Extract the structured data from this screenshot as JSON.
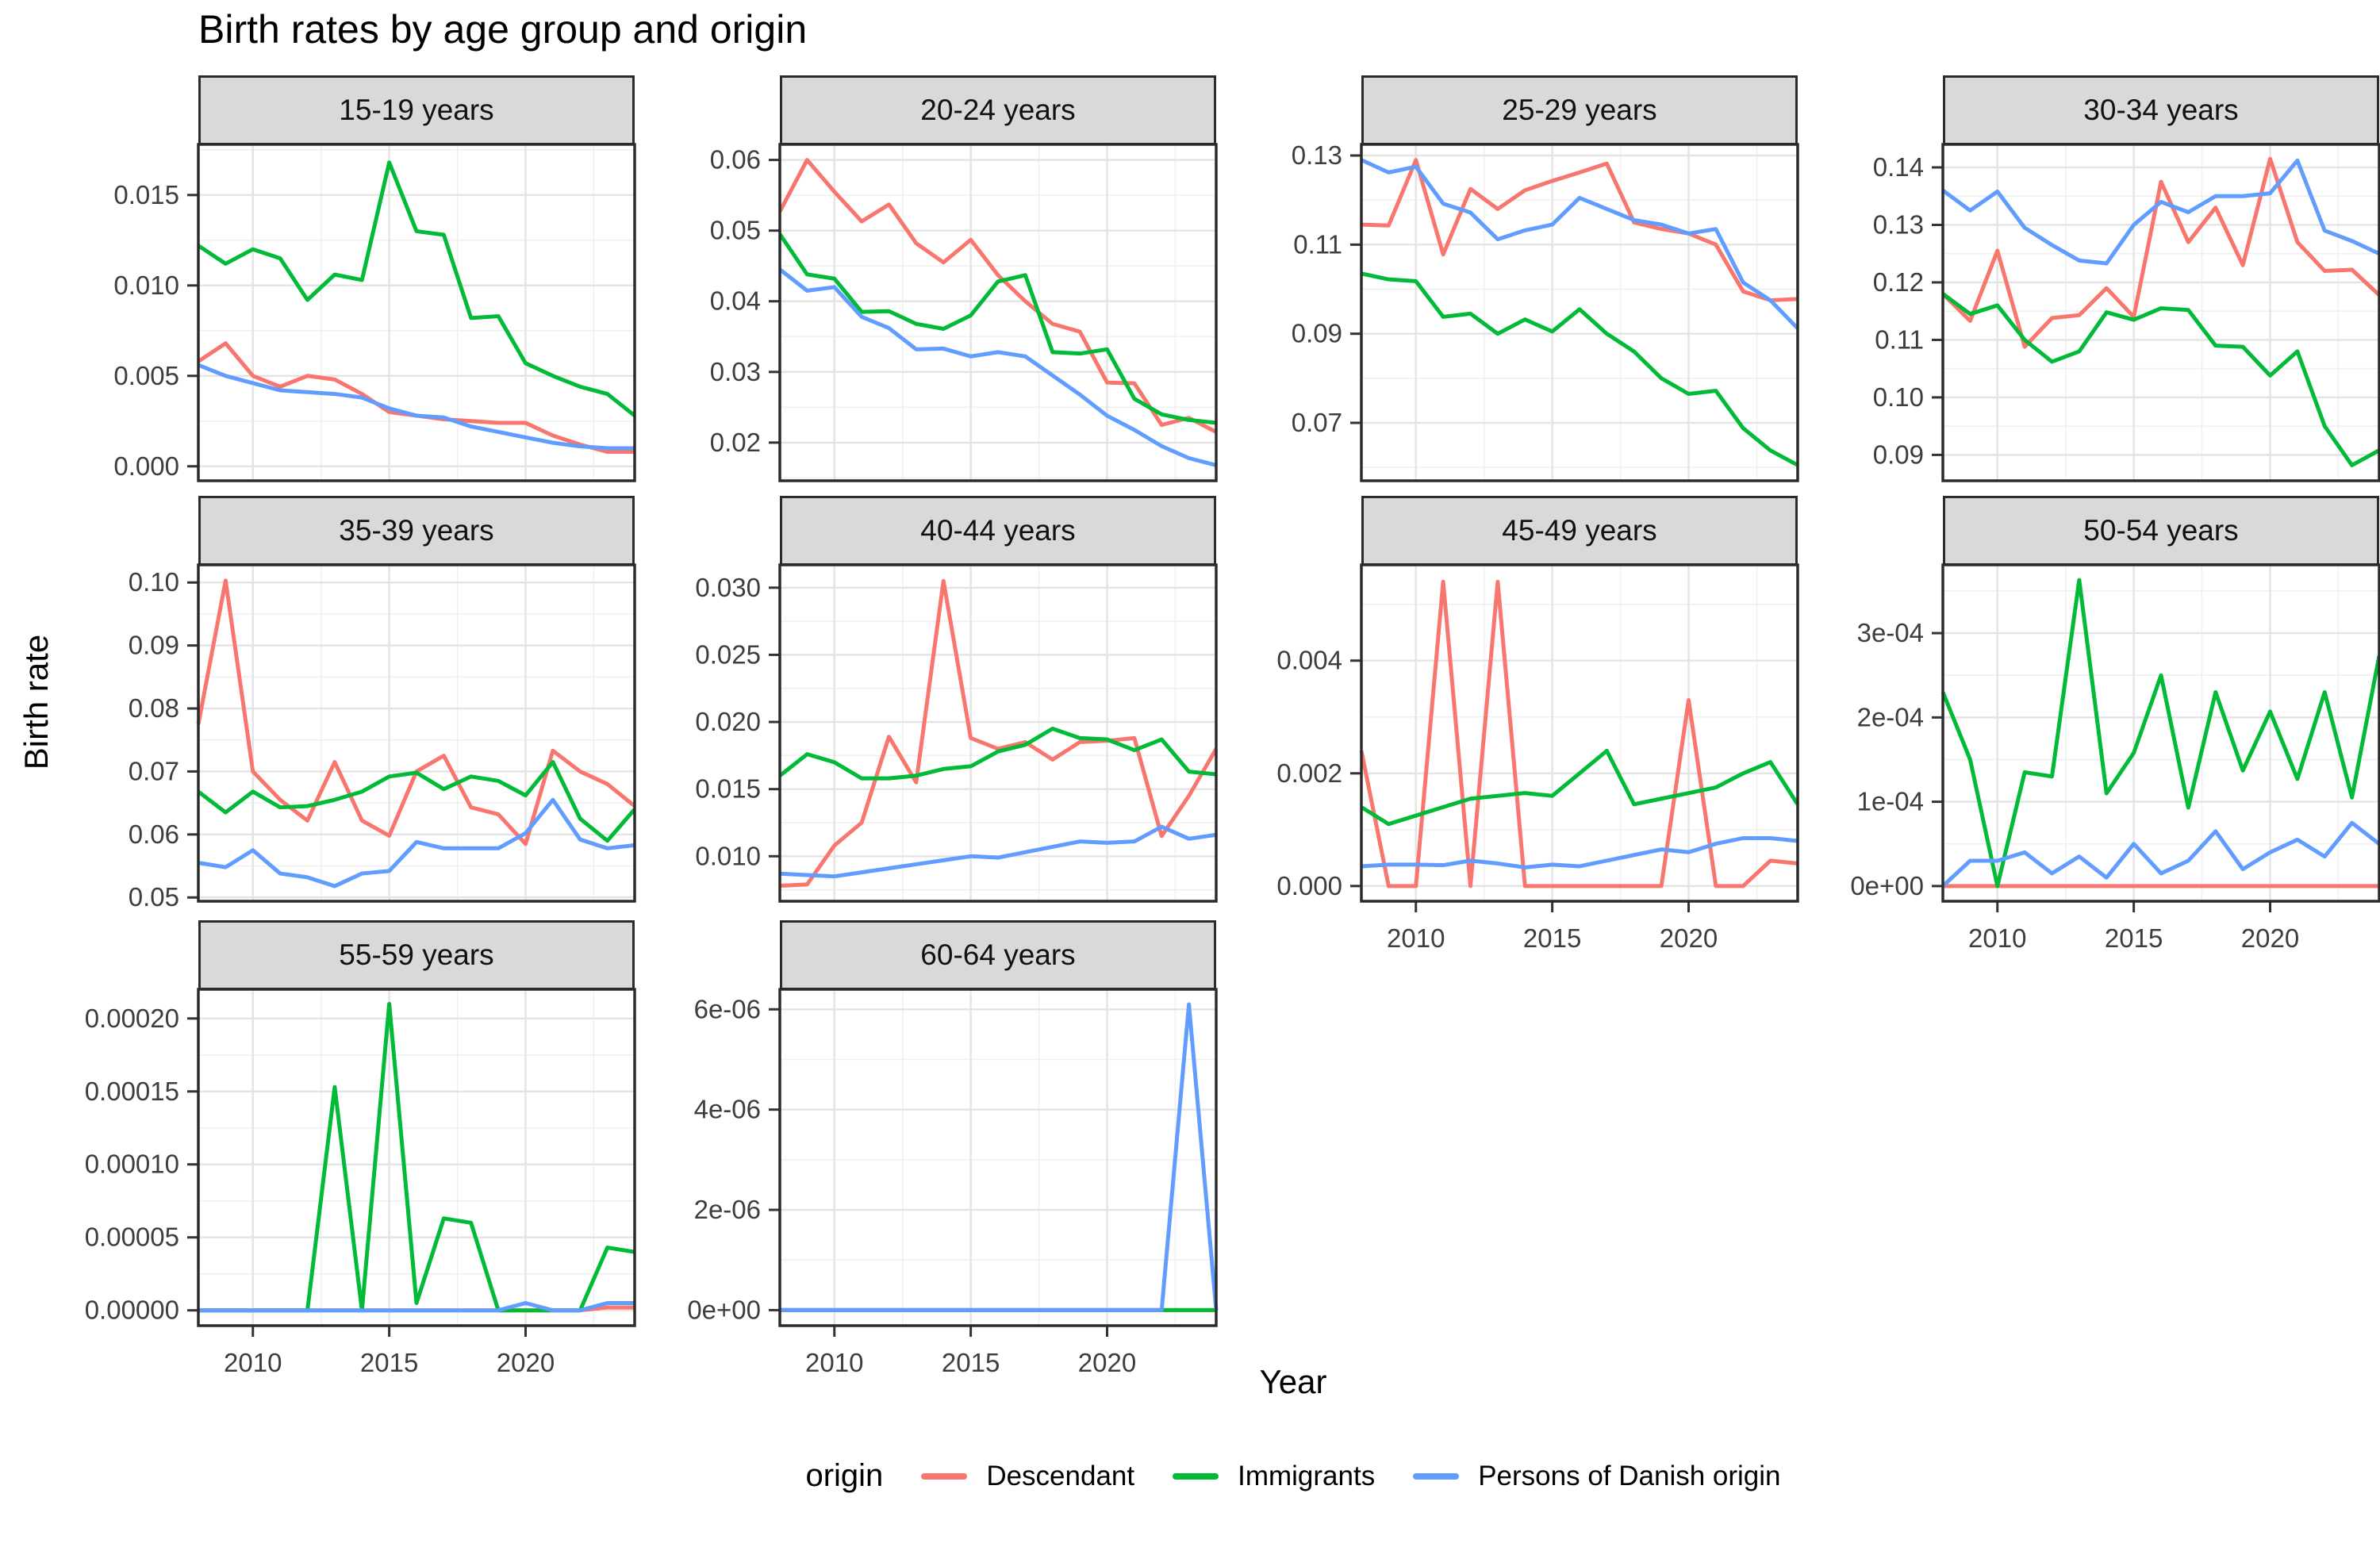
{
  "title": "Birth rates by age group and origin",
  "axes": {
    "x_label": "Year",
    "y_label": "Birth rate"
  },
  "legend": {
    "title": "origin",
    "items": [
      {
        "label": "Descendant",
        "color": "#F8766D"
      },
      {
        "label": "Immigrants",
        "color": "#00BA38"
      },
      {
        "label": "Persons of Danish origin",
        "color": "#619CFF"
      }
    ]
  },
  "chart_data": {
    "type": "line",
    "x_label": "Year",
    "y_label": "Birth rate",
    "x": [
      2008,
      2009,
      2010,
      2011,
      2012,
      2013,
      2014,
      2015,
      2016,
      2017,
      2018,
      2019,
      2020,
      2021,
      2022,
      2023,
      2024
    ],
    "x_range": [
      2008,
      2024
    ],
    "x_ticks": {
      "values": [
        2010,
        2015,
        2020
      ],
      "labels": [
        "2010",
        "2015",
        "2020"
      ]
    },
    "x_minor_ticks": [
      2012.5,
      2017.5,
      2022.5
    ],
    "series_meta": [
      {
        "name": "Descendant",
        "color": "#F8766D"
      },
      {
        "name": "Immigrants",
        "color": "#00BA38"
      },
      {
        "name": "Persons of Danish origin",
        "color": "#619CFF"
      }
    ],
    "panels": [
      {
        "title": "15-19 years",
        "ylim": [
          -0.0008,
          0.0178
        ],
        "y_ticks": {
          "values": [
            0,
            0.005,
            0.01,
            0.015
          ],
          "labels": [
            "0.000",
            "0.005",
            "0.010",
            "0.015"
          ]
        },
        "show_x_labels": false,
        "values": [
          [
            0.0058,
            0.0068,
            0.005,
            0.0044,
            0.005,
            0.0048,
            0.004,
            0.003,
            0.0028,
            0.0026,
            0.0025,
            0.0024,
            0.0024,
            0.0017,
            0.0012,
            0.0008,
            0.0008
          ],
          [
            0.0122,
            0.0112,
            0.012,
            0.0115,
            0.0092,
            0.0106,
            0.0103,
            0.0168,
            0.013,
            0.0128,
            0.0082,
            0.0083,
            0.0057,
            0.005,
            0.0044,
            0.004,
            0.0028
          ],
          [
            0.0056,
            0.005,
            0.0046,
            0.0042,
            0.0041,
            0.004,
            0.0038,
            0.0032,
            0.0028,
            0.0027,
            0.0022,
            0.0019,
            0.0016,
            0.0013,
            0.0011,
            0.001,
            0.001
          ]
        ]
      },
      {
        "title": "20-24 years",
        "ylim": [
          0.0146,
          0.0622
        ],
        "y_ticks": {
          "values": [
            0.02,
            0.03,
            0.04,
            0.05,
            0.06
          ],
          "labels": [
            "0.02",
            "0.03",
            "0.04",
            "0.05",
            "0.06"
          ]
        },
        "show_x_labels": false,
        "values": [
          [
            0.0527,
            0.06,
            0.0555,
            0.0513,
            0.0537,
            0.0482,
            0.0455,
            0.0487,
            0.0437,
            0.04,
            0.0368,
            0.0357,
            0.0285,
            0.0284,
            0.0225,
            0.0235,
            0.0215
          ],
          [
            0.0495,
            0.0438,
            0.0432,
            0.0385,
            0.0386,
            0.0368,
            0.0361,
            0.038,
            0.0428,
            0.0437,
            0.0328,
            0.0326,
            0.0332,
            0.0262,
            0.024,
            0.0232,
            0.0228
          ],
          [
            0.0445,
            0.0415,
            0.042,
            0.0378,
            0.0362,
            0.0332,
            0.0333,
            0.0322,
            0.0328,
            0.0322,
            0.0295,
            0.0268,
            0.0238,
            0.0218,
            0.0195,
            0.0178,
            0.0168
          ]
        ]
      },
      {
        "title": "25-29 years",
        "ylim": [
          0.057,
          0.1325
        ],
        "y_ticks": {
          "values": [
            0.07,
            0.09,
            0.11,
            0.13
          ],
          "labels": [
            "0.07",
            "0.09",
            "0.11",
            "0.13"
          ]
        },
        "show_x_labels": false,
        "values": [
          [
            0.1145,
            0.1143,
            0.129,
            0.1078,
            0.1225,
            0.118,
            0.1222,
            0.1243,
            0.1262,
            0.1282,
            0.115,
            0.1135,
            0.1125,
            0.11,
            0.0995,
            0.0975,
            0.0978
          ],
          [
            0.1035,
            0.1022,
            0.1018,
            0.0938,
            0.0945,
            0.09,
            0.0932,
            0.0905,
            0.0955,
            0.09,
            0.086,
            0.08,
            0.0765,
            0.0772,
            0.0688,
            0.0638,
            0.0605
          ],
          [
            0.129,
            0.1262,
            0.1275,
            0.1192,
            0.1172,
            0.1112,
            0.1132,
            0.1145,
            0.1205,
            0.118,
            0.1155,
            0.1145,
            0.1125,
            0.1135,
            0.1015,
            0.0975,
            0.0912
          ]
        ]
      },
      {
        "title": "30-34 years",
        "ylim": [
          0.0855,
          0.144
        ],
        "y_ticks": {
          "values": [
            0.09,
            0.1,
            0.11,
            0.12,
            0.13,
            0.14
          ],
          "labels": [
            "0.09",
            "0.10",
            "0.11",
            "0.12",
            "0.13",
            "0.14"
          ]
        },
        "show_x_labels": false,
        "values": [
          [
            0.118,
            0.1133,
            0.1255,
            0.1088,
            0.1138,
            0.1143,
            0.119,
            0.114,
            0.1375,
            0.127,
            0.133,
            0.123,
            0.1415,
            0.127,
            0.122,
            0.1222,
            0.1178
          ],
          [
            0.118,
            0.1145,
            0.116,
            0.11,
            0.1062,
            0.108,
            0.1148,
            0.1135,
            0.1155,
            0.1152,
            0.109,
            0.1088,
            0.1038,
            0.108,
            0.095,
            0.0882,
            0.0908
          ],
          [
            0.136,
            0.1325,
            0.1358,
            0.1295,
            0.1265,
            0.1238,
            0.1233,
            0.13,
            0.134,
            0.1322,
            0.135,
            0.135,
            0.1355,
            0.1412,
            0.129,
            0.1272,
            0.125
          ]
        ]
      },
      {
        "title": "35-39 years",
        "ylim": [
          0.0494,
          0.1028
        ],
        "y_ticks": {
          "values": [
            0.05,
            0.06,
            0.07,
            0.08,
            0.09,
            0.1
          ],
          "labels": [
            "0.05",
            "0.06",
            "0.07",
            "0.08",
            "0.09",
            "0.10"
          ]
        },
        "show_x_labels": false,
        "values": [
          [
            0.0775,
            0.1003,
            0.07,
            0.0655,
            0.0622,
            0.0715,
            0.0622,
            0.0598,
            0.07,
            0.0725,
            0.0643,
            0.0632,
            0.0585,
            0.0733,
            0.07,
            0.068,
            0.0645
          ],
          [
            0.0668,
            0.0635,
            0.0668,
            0.0643,
            0.0645,
            0.0655,
            0.0668,
            0.0692,
            0.0698,
            0.0672,
            0.0692,
            0.0685,
            0.0662,
            0.0715,
            0.0625,
            0.059,
            0.064
          ],
          [
            0.0555,
            0.0548,
            0.0575,
            0.0538,
            0.0532,
            0.0518,
            0.0538,
            0.0542,
            0.0588,
            0.0578,
            0.0578,
            0.0578,
            0.0602,
            0.0655,
            0.0592,
            0.0578,
            0.0583
          ]
        ]
      },
      {
        "title": "40-44 years",
        "ylim": [
          0.00665,
          0.0317
        ],
        "y_ticks": {
          "values": [
            0.01,
            0.015,
            0.02,
            0.025,
            0.03
          ],
          "labels": [
            "0.010",
            "0.015",
            "0.020",
            "0.025",
            "0.030"
          ]
        },
        "show_x_labels": false,
        "values": [
          [
            0.0078,
            0.0079,
            0.0108,
            0.0125,
            0.0189,
            0.0155,
            0.0305,
            0.0188,
            0.018,
            0.0185,
            0.0172,
            0.0185,
            0.0186,
            0.0188,
            0.0115,
            0.0145,
            0.018
          ],
          [
            0.016,
            0.0176,
            0.017,
            0.0158,
            0.0158,
            0.016,
            0.0165,
            0.0167,
            0.0178,
            0.0183,
            0.0195,
            0.0188,
            0.0187,
            0.0179,
            0.0187,
            0.0163,
            0.0161
          ],
          [
            0.0087,
            0.0086,
            0.0085,
            0.0088,
            0.0091,
            0.0094,
            0.0097,
            0.01,
            0.0099,
            0.0103,
            0.0107,
            0.0111,
            0.011,
            0.0111,
            0.0122,
            0.0113,
            0.0116
          ]
        ]
      },
      {
        "title": "45-49 years",
        "ylim": [
          -0.00027,
          0.0057
        ],
        "y_ticks": {
          "values": [
            0,
            0.002,
            0.004
          ],
          "labels": [
            "0.000",
            "0.002",
            "0.004"
          ]
        },
        "show_x_labels": true,
        "values": [
          [
            0.0024,
            0,
            0,
            0.0054,
            0,
            0.0054,
            0,
            0,
            0,
            0,
            0,
            0,
            0.0033,
            0,
            0,
            0.00045,
            0.0004
          ],
          [
            0.0014,
            0.0011,
            0.00125,
            0.0014,
            0.00155,
            0.0016,
            0.00165,
            0.0016,
            0.002,
            0.0024,
            0.00145,
            0.00155,
            0.00165,
            0.00175,
            0.002,
            0.0022,
            0.00145
          ],
          [
            0.00035,
            0.00038,
            0.00038,
            0.00037,
            0.00045,
            0.0004,
            0.00033,
            0.00038,
            0.00035,
            0.00045,
            0.00055,
            0.00065,
            0.0006,
            0.00075,
            0.00085,
            0.00085,
            0.0008
          ]
        ]
      },
      {
        "title": "50-54 years",
        "ylim": [
          -1.8e-05,
          0.000381
        ],
        "y_ticks": {
          "values": [
            0,
            0.0001,
            0.0002,
            0.0003
          ],
          "labels": [
            "0e+00",
            "1e-04",
            "2e-04",
            "3e-04"
          ]
        },
        "show_x_labels": true,
        "values": [
          [
            0,
            0,
            0,
            0,
            0,
            0,
            0,
            0,
            0,
            0,
            0,
            0,
            0,
            0,
            0,
            0,
            0
          ],
          [
            0.00023,
            0.00015,
            0,
            0.000135,
            0.00013,
            0.000363,
            0.00011,
            0.000158,
            0.00025,
            9.3e-05,
            0.00023,
            0.000137,
            0.000207,
            0.000127,
            0.00023,
            0.000105,
            0.000273
          ],
          [
            0,
            3e-05,
            3e-05,
            4e-05,
            1.5e-05,
            3.5e-05,
            1e-05,
            5e-05,
            1.5e-05,
            3e-05,
            6.5e-05,
            2e-05,
            4e-05,
            5.5e-05,
            3.5e-05,
            7.5e-05,
            5e-05
          ]
        ]
      },
      {
        "title": "55-59 years",
        "ylim": [
          -1.05e-05,
          0.00022
        ],
        "y_ticks": {
          "values": [
            0,
            5e-05,
            0.0001,
            0.00015,
            0.0002
          ],
          "labels": [
            "0.00000",
            "0.00005",
            "0.00010",
            "0.00015",
            "0.00020"
          ]
        },
        "show_x_labels": true,
        "values": [
          [
            0,
            0,
            0,
            0,
            0,
            0,
            0,
            0,
            0,
            0,
            0,
            0,
            0,
            0,
            0,
            2e-06,
            2e-06
          ],
          [
            0,
            0,
            0,
            0,
            0,
            0.000153,
            0,
            0.00021,
            5e-06,
            6.3e-05,
            6e-05,
            0,
            0,
            0,
            0,
            4.3e-05,
            4e-05
          ],
          [
            0,
            0,
            0,
            0,
            0,
            0,
            0,
            0,
            0,
            0,
            0,
            0,
            5e-06,
            0,
            0,
            5e-06,
            5e-06
          ]
        ]
      },
      {
        "title": "60-64 years",
        "ylim": [
          -3.1e-07,
          6.4e-06
        ],
        "y_ticks": {
          "values": [
            0,
            2e-06,
            4e-06,
            6e-06
          ],
          "labels": [
            "0e+00",
            "2e-06",
            "4e-06",
            "6e-06"
          ]
        },
        "show_x_labels": true,
        "values": [
          [
            0,
            0,
            0,
            0,
            0,
            0,
            0,
            0,
            0,
            0,
            0,
            0,
            0,
            0,
            0,
            0,
            0
          ],
          [
            0,
            0,
            0,
            0,
            0,
            0,
            0,
            0,
            0,
            0,
            0,
            0,
            0,
            0,
            0,
            0,
            0
          ],
          [
            0,
            0,
            0,
            0,
            0,
            0,
            0,
            0,
            0,
            0,
            0,
            0,
            0,
            0,
            0,
            6.1e-06,
            0
          ]
        ]
      }
    ]
  }
}
